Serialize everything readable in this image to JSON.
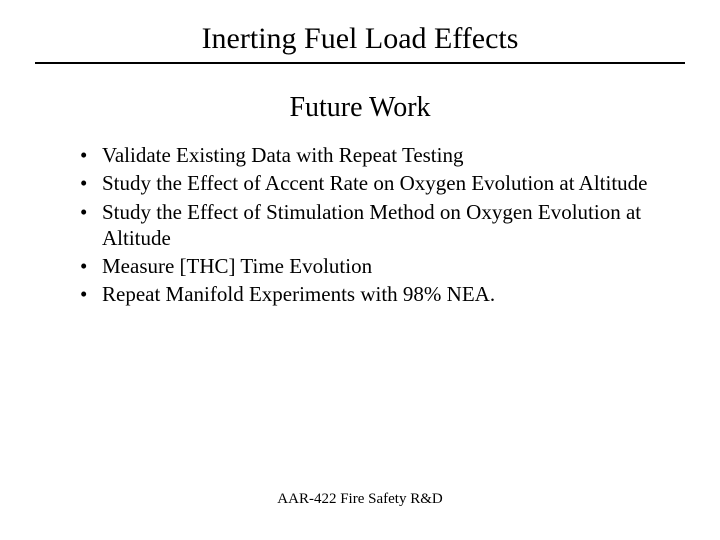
{
  "slide": {
    "main_title": "Inerting Fuel Load Effects",
    "sub_title": "Future Work",
    "bullets": [
      "Validate Existing Data with Repeat Testing",
      "Study the Effect of Accent Rate on Oxygen Evolution at Altitude",
      "Study the Effect of Stimulation Method on Oxygen Evolution at Altitude",
      "Measure [THC] Time Evolution",
      "Repeat Manifold Experiments with 98% NEA."
    ],
    "footer": "AAR-422 Fire Safety R&D"
  },
  "styling": {
    "background_color": "#ffffff",
    "text_color": "#000000",
    "font_family": "Times New Roman",
    "main_title_fontsize": 30,
    "sub_title_fontsize": 28,
    "bullet_fontsize": 21,
    "footer_fontsize": 15,
    "underline_color": "#000000",
    "underline_width": 2
  }
}
